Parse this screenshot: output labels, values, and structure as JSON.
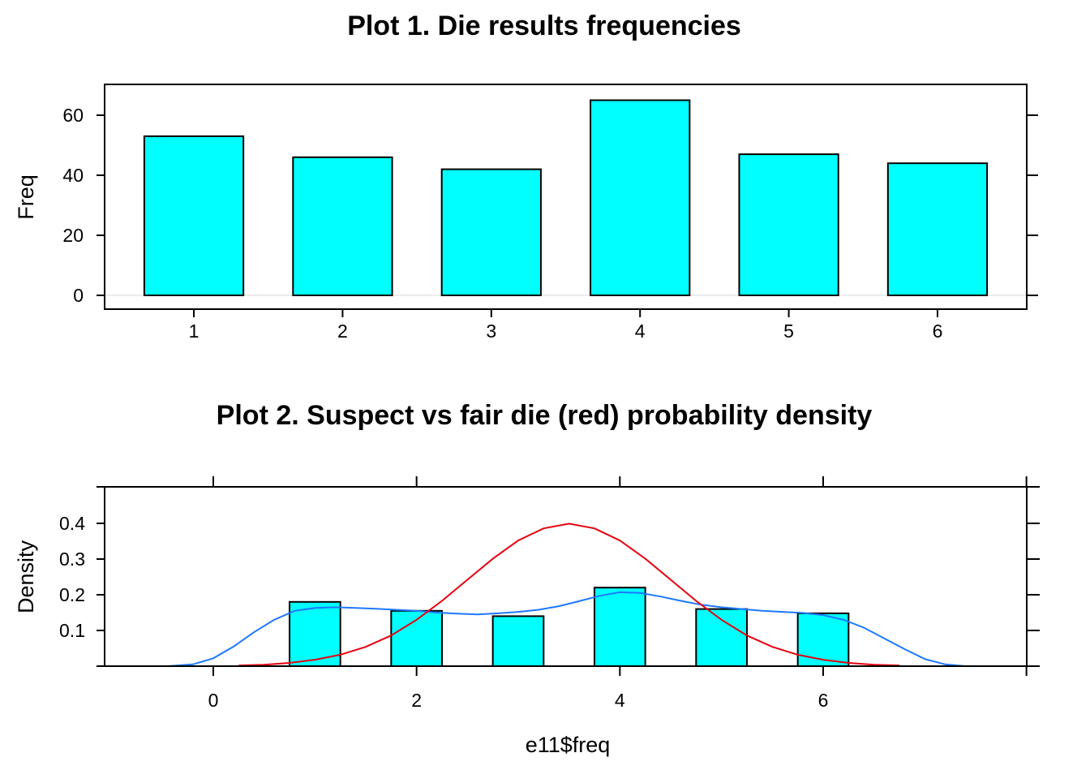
{
  "chart_data": [
    {
      "type": "bar",
      "title": "Plot 1. Die results frequencies",
      "xlabel": "",
      "ylabel": "Freq",
      "categories": [
        "1",
        "2",
        "3",
        "4",
        "5",
        "6"
      ],
      "values": [
        53,
        46,
        42,
        65,
        47,
        44
      ],
      "ylim": [
        0,
        70
      ],
      "yticks": [
        "0",
        "20",
        "40",
        "60"
      ],
      "grid": false,
      "colors": {
        "bar_fill": "#00ffff",
        "bar_stroke": "#000000",
        "zero_line": "#e6e6e6"
      }
    },
    {
      "type": "histogram",
      "title": "Plot 2. Suspect vs fair die (red) probability density",
      "xlabel": "e11$freq",
      "ylabel": "Density",
      "xlim": [
        -1.1,
        8
      ],
      "ylim": [
        0,
        0.49
      ],
      "xticks": [
        "0",
        "2",
        "4",
        "6"
      ],
      "yticks": [
        "0.1",
        "0.2",
        "0.3",
        "0.4"
      ],
      "bins": [
        {
          "x0": 0.75,
          "x1": 1.25,
          "density": 0.18
        },
        {
          "x0": 1.75,
          "x1": 2.25,
          "density": 0.155
        },
        {
          "x0": 2.75,
          "x1": 3.25,
          "density": 0.14
        },
        {
          "x0": 3.75,
          "x1": 4.25,
          "density": 0.22
        },
        {
          "x0": 4.75,
          "x1": 5.25,
          "density": 0.16
        },
        {
          "x0": 5.75,
          "x1": 6.25,
          "density": 0.148
        }
      ],
      "series": [
        {
          "type": "line",
          "color": "#1e78ff",
          "x": [
            -0.45,
            -0.2,
            0.0,
            0.2,
            0.4,
            0.6,
            0.8,
            1.0,
            1.2,
            1.4,
            1.6,
            1.8,
            2.0,
            2.2,
            2.4,
            2.6,
            2.8,
            3.0,
            3.2,
            3.4,
            3.6,
            3.8,
            4.0,
            4.2,
            4.4,
            4.6,
            4.8,
            5.0,
            5.2,
            5.4,
            5.6,
            5.8,
            6.0,
            6.2,
            6.4,
            6.6,
            6.8,
            7.0,
            7.2,
            7.4
          ],
          "y": [
            0.0,
            0.005,
            0.022,
            0.055,
            0.095,
            0.13,
            0.155,
            0.163,
            0.165,
            0.163,
            0.161,
            0.158,
            0.155,
            0.15,
            0.147,
            0.145,
            0.148,
            0.152,
            0.158,
            0.168,
            0.182,
            0.197,
            0.207,
            0.205,
            0.195,
            0.183,
            0.172,
            0.165,
            0.16,
            0.155,
            0.152,
            0.149,
            0.143,
            0.13,
            0.108,
            0.078,
            0.048,
            0.02,
            0.005,
            0.0
          ]
        },
        {
          "type": "line",
          "color": "#e6000f",
          "x": [
            0.25,
            0.5,
            0.75,
            1.0,
            1.25,
            1.5,
            1.75,
            2.0,
            2.25,
            2.5,
            2.75,
            3.0,
            3.25,
            3.5,
            3.75,
            4.0,
            4.25,
            4.5,
            4.75,
            5.0,
            5.25,
            5.5,
            5.75,
            6.0,
            6.25,
            6.5,
            6.75
          ],
          "y": [
            0.002,
            0.004,
            0.009,
            0.018,
            0.032,
            0.054,
            0.086,
            0.13,
            0.183,
            0.242,
            0.301,
            0.352,
            0.386,
            0.399,
            0.386,
            0.352,
            0.301,
            0.242,
            0.183,
            0.13,
            0.086,
            0.054,
            0.032,
            0.018,
            0.009,
            0.004,
            0.002
          ]
        }
      ],
      "grid": false,
      "colors": {
        "bar_fill": "#00ffff",
        "bar_stroke": "#000000"
      }
    }
  ]
}
